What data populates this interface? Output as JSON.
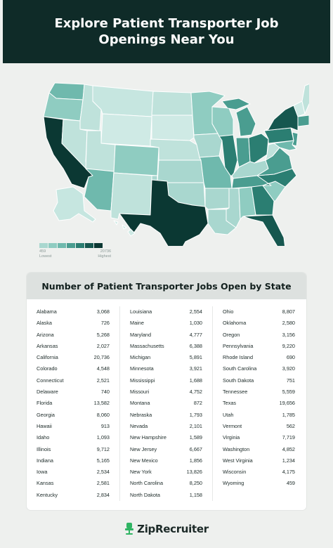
{
  "header": {
    "title": "Explore Patient Transporter Job Openings Near You"
  },
  "legend": {
    "min": "459",
    "max": "20736",
    "low_label": "Lowest",
    "high_label": "Highest",
    "colors": [
      "#a9d7cf",
      "#8fccc1",
      "#6fb9ad",
      "#4a9d90",
      "#2b7e72",
      "#16574f",
      "#0b3833"
    ]
  },
  "table": {
    "title": "Number of Patient Transporter Jobs Open by State",
    "columns": [
      [
        {
          "state": "Alabama",
          "count": "3,068"
        },
        {
          "state": "Alaska",
          "count": "726"
        },
        {
          "state": "Arizona",
          "count": "5,268"
        },
        {
          "state": "Arkansas",
          "count": "2,027"
        },
        {
          "state": "California",
          "count": "20,736"
        },
        {
          "state": "Colorado",
          "count": "4,548"
        },
        {
          "state": "Connecticut",
          "count": "2,521"
        },
        {
          "state": "Delaware",
          "count": "740"
        },
        {
          "state": "Florida",
          "count": "13,582"
        },
        {
          "state": "Georgia",
          "count": "8,060"
        },
        {
          "state": "Hawaii",
          "count": "913"
        },
        {
          "state": "Idaho",
          "count": "1,093"
        },
        {
          "state": "Illinois",
          "count": "9,712"
        },
        {
          "state": "Indiana",
          "count": "5,165"
        },
        {
          "state": "Iowa",
          "count": "2,534"
        },
        {
          "state": "Kansas",
          "count": "2,581"
        },
        {
          "state": "Kentucky",
          "count": "2,834"
        }
      ],
      [
        {
          "state": "Louisiana",
          "count": "2,554"
        },
        {
          "state": "Maine",
          "count": "1,030"
        },
        {
          "state": "Maryland",
          "count": "4,777"
        },
        {
          "state": "Massachusetts",
          "count": "6,388"
        },
        {
          "state": "Michigan",
          "count": "5,891"
        },
        {
          "state": "Minnesota",
          "count": "3,921"
        },
        {
          "state": "Mississippi",
          "count": "1,688"
        },
        {
          "state": "Missouri",
          "count": "4,752"
        },
        {
          "state": "Montana",
          "count": "872"
        },
        {
          "state": "Nebraska",
          "count": "1,793"
        },
        {
          "state": "Nevada",
          "count": "2,101"
        },
        {
          "state": "New Hampshire",
          "count": "1,589"
        },
        {
          "state": "New Jersey",
          "count": "6,667"
        },
        {
          "state": "New Mexico",
          "count": "1,856"
        },
        {
          "state": "New York",
          "count": "13,826"
        },
        {
          "state": "North Carolina",
          "count": "8,250"
        },
        {
          "state": "North Dakota",
          "count": "1,158"
        }
      ],
      [
        {
          "state": "Ohio",
          "count": "8,807"
        },
        {
          "state": "Oklahoma",
          "count": "2,580"
        },
        {
          "state": "Oregon",
          "count": "3,156"
        },
        {
          "state": "Pennsylvania",
          "count": "9,220"
        },
        {
          "state": "Rhode Island",
          "count": "690"
        },
        {
          "state": "South Carolina",
          "count": "3,920"
        },
        {
          "state": "South Dakota",
          "count": "751"
        },
        {
          "state": "Tennessee",
          "count": "5,559"
        },
        {
          "state": "Texas",
          "count": "19,656"
        },
        {
          "state": "Utah",
          "count": "1,785"
        },
        {
          "state": "Vermont",
          "count": "562"
        },
        {
          "state": "Virginia",
          "count": "7,719"
        },
        {
          "state": "Washington",
          "count": "4,852"
        },
        {
          "state": "West Virginia",
          "count": "1,234"
        },
        {
          "state": "Wisconsin",
          "count": "4,175"
        },
        {
          "state": "Wyoming",
          "count": "459"
        }
      ]
    ]
  },
  "footer": {
    "brand": "ZipRecruiter",
    "logo_icon": "chair-icon",
    "brand_color": "#2fb463"
  }
}
